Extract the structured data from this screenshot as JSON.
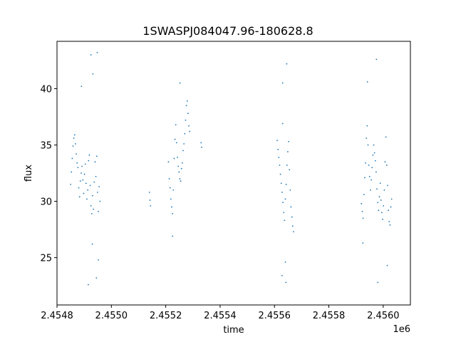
{
  "chart_data": {
    "type": "scatter",
    "title": "1SWASPJ084047.96-180628.8",
    "xlabel": "time",
    "ylabel": "flux",
    "x_offset_label": "1e6",
    "xlim": [
      2454800,
      2456100
    ],
    "ylim": [
      20.8,
      44.2
    ],
    "x_ticks": [
      2454800,
      2455000,
      2455200,
      2455400,
      2455600,
      2455800,
      2456000
    ],
    "x_tick_labels": [
      "2.4548",
      "2.4550",
      "2.4552",
      "2.4554",
      "2.4556",
      "2.4558",
      "2.4560"
    ],
    "y_ticks": [
      25,
      30,
      35,
      40
    ],
    "y_tick_labels": [
      "25",
      "30",
      "35",
      "40"
    ],
    "grid": false,
    "marker_color": "#1f77b4",
    "points": [
      [
        2454850,
        31.5
      ],
      [
        2454853,
        32.6
      ],
      [
        2454856,
        33.8
      ],
      [
        2454859,
        34.9
      ],
      [
        2454862,
        35.6
      ],
      [
        2454865,
        35.9
      ],
      [
        2454868,
        35.1
      ],
      [
        2454871,
        34.2
      ],
      [
        2454874,
        33.4
      ],
      [
        2454877,
        33.0
      ],
      [
        2454880,
        31.2
      ],
      [
        2454883,
        30.4
      ],
      [
        2454886,
        31.8
      ],
      [
        2454889,
        32.5
      ],
      [
        2454892,
        33.1
      ],
      [
        2454895,
        31.9
      ],
      [
        2454898,
        30.7
      ],
      [
        2454901,
        32.4
      ],
      [
        2454904,
        33.3
      ],
      [
        2454907,
        31.6
      ],
      [
        2454910,
        30.2
      ],
      [
        2454913,
        31.0
      ],
      [
        2454916,
        33.6
      ],
      [
        2454919,
        34.1
      ],
      [
        2454922,
        31.4
      ],
      [
        2454925,
        29.6
      ],
      [
        2454928,
        28.9
      ],
      [
        2454931,
        30.5
      ],
      [
        2454934,
        29.3
      ],
      [
        2454937,
        31.7
      ],
      [
        2454940,
        33.5
      ],
      [
        2454943,
        32.2
      ],
      [
        2454946,
        34.0
      ],
      [
        2454949,
        30.8
      ],
      [
        2454952,
        29.1
      ],
      [
        2454955,
        31.3
      ],
      [
        2454958,
        30.0
      ],
      [
        2454952,
        24.8
      ],
      [
        2454915,
        22.6
      ],
      [
        2454945,
        23.2
      ],
      [
        2454930,
        26.2
      ],
      [
        2454925,
        43.0
      ],
      [
        2454948,
        43.2
      ],
      [
        2454932,
        41.3
      ],
      [
        2454890,
        40.2
      ],
      [
        2455140,
        30.8
      ],
      [
        2455142,
        30.1
      ],
      [
        2455144,
        29.6
      ],
      [
        2455210,
        33.5
      ],
      [
        2455213,
        32.0
      ],
      [
        2455216,
        31.2
      ],
      [
        2455219,
        30.2
      ],
      [
        2455222,
        29.5
      ],
      [
        2455225,
        28.9
      ],
      [
        2455228,
        31.0
      ],
      [
        2455231,
        33.8
      ],
      [
        2455234,
        35.5
      ],
      [
        2455237,
        36.8
      ],
      [
        2455240,
        35.2
      ],
      [
        2455243,
        33.9
      ],
      [
        2455246,
        33.1
      ],
      [
        2455249,
        32.6
      ],
      [
        2455252,
        32.0
      ],
      [
        2455255,
        31.8
      ],
      [
        2455258,
        32.9
      ],
      [
        2455261,
        33.4
      ],
      [
        2455264,
        34.5
      ],
      [
        2455267,
        35.1
      ],
      [
        2455270,
        36.0
      ],
      [
        2455273,
        37.2
      ],
      [
        2455276,
        38.5
      ],
      [
        2455279,
        38.9
      ],
      [
        2455282,
        37.8
      ],
      [
        2455285,
        36.7
      ],
      [
        2455288,
        36.2
      ],
      [
        2455252,
        40.5
      ],
      [
        2455225,
        26.9
      ],
      [
        2455330,
        35.2
      ],
      [
        2455332,
        34.8
      ],
      [
        2455610,
        35.4
      ],
      [
        2455613,
        34.6
      ],
      [
        2455616,
        33.9
      ],
      [
        2455619,
        33.2
      ],
      [
        2455622,
        32.4
      ],
      [
        2455625,
        31.6
      ],
      [
        2455628,
        30.8
      ],
      [
        2455631,
        29.9
      ],
      [
        2455634,
        29.0
      ],
      [
        2455637,
        28.3
      ],
      [
        2455640,
        30.2
      ],
      [
        2455643,
        31.5
      ],
      [
        2455646,
        33.2
      ],
      [
        2455649,
        34.4
      ],
      [
        2455652,
        35.3
      ],
      [
        2455655,
        32.8
      ],
      [
        2455658,
        31.0
      ],
      [
        2455661,
        29.5
      ],
      [
        2455664,
        28.6
      ],
      [
        2455667,
        27.8
      ],
      [
        2455670,
        27.3
      ],
      [
        2455630,
        36.9
      ],
      [
        2455630,
        40.5
      ],
      [
        2455645,
        42.2
      ],
      [
        2455628,
        23.4
      ],
      [
        2455642,
        22.8
      ],
      [
        2455640,
        24.6
      ],
      [
        2455920,
        29.8
      ],
      [
        2455923,
        29.1
      ],
      [
        2455926,
        28.5
      ],
      [
        2455929,
        30.6
      ],
      [
        2455932,
        32.1
      ],
      [
        2455935,
        33.4
      ],
      [
        2455938,
        35.6
      ],
      [
        2455941,
        36.7
      ],
      [
        2455944,
        35.0
      ],
      [
        2455947,
        33.2
      ],
      [
        2455950,
        32.2
      ],
      [
        2455953,
        31.0
      ],
      [
        2455956,
        31.9
      ],
      [
        2455959,
        33.0
      ],
      [
        2455962,
        34.1
      ],
      [
        2455965,
        35.0
      ],
      [
        2455968,
        34.3
      ],
      [
        2455971,
        33.6
      ],
      [
        2455974,
        32.6
      ],
      [
        2455977,
        31.1
      ],
      [
        2455980,
        29.9
      ],
      [
        2455983,
        29.2
      ],
      [
        2455986,
        30.4
      ],
      [
        2455989,
        31.6
      ],
      [
        2455992,
        30.1
      ],
      [
        2455995,
        29.0
      ],
      [
        2455998,
        28.4
      ],
      [
        2456001,
        29.6
      ],
      [
        2456004,
        31.0
      ],
      [
        2456007,
        33.5
      ],
      [
        2456010,
        35.7
      ],
      [
        2456013,
        33.2
      ],
      [
        2456016,
        31.4
      ],
      [
        2456019,
        29.2
      ],
      [
        2456022,
        28.2
      ],
      [
        2456025,
        27.9
      ],
      [
        2456028,
        29.5
      ],
      [
        2456031,
        30.2
      ],
      [
        2455942,
        40.6
      ],
      [
        2455975,
        42.6
      ],
      [
        2455925,
        26.3
      ],
      [
        2455980,
        22.8
      ],
      [
        2456015,
        24.3
      ]
    ]
  }
}
